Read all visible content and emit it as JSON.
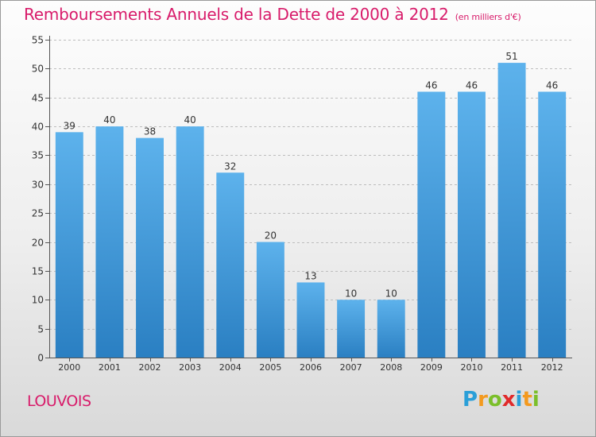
{
  "title": "Remboursements Annuels de la Dette de 2000 à 2012",
  "subtitle": "(en milliers d'€)",
  "town": "LOUVOIS",
  "logo": {
    "text": "Proxiti",
    "letters": [
      {
        "ch": "P",
        "color": "#2a9fd8"
      },
      {
        "ch": "r",
        "color": "#f39a1f"
      },
      {
        "ch": "o",
        "color": "#7bbf2a"
      },
      {
        "ch": "x",
        "color": "#e02a2a"
      },
      {
        "ch": "i",
        "color": "#2a9fd8"
      },
      {
        "ch": "t",
        "color": "#f39a1f"
      },
      {
        "ch": "i",
        "color": "#7bbf2a"
      }
    ]
  },
  "colors": {
    "title": "#d81b6a",
    "bar_top": "#5db2ec",
    "bar_bottom": "#2a7fc2",
    "grid": "#bdbdbd",
    "axis": "#555555",
    "text": "#333333"
  },
  "chart_data": {
    "type": "bar",
    "title": "Remboursements Annuels de la Dette de 2000 à 2012",
    "subtitle": "(en milliers d'€)",
    "xlabel": "",
    "ylabel": "",
    "categories": [
      "2000",
      "2001",
      "2002",
      "2003",
      "2004",
      "2005",
      "2006",
      "2007",
      "2008",
      "2009",
      "2010",
      "2011",
      "2012"
    ],
    "values": [
      39,
      40,
      38,
      40,
      32,
      20,
      13,
      10,
      10,
      46,
      46,
      51,
      46
    ],
    "ylim": [
      0,
      55
    ],
    "yticks": [
      0,
      5,
      10,
      15,
      20,
      25,
      30,
      35,
      40,
      45,
      50,
      55
    ],
    "grid": true,
    "data_labels": true
  }
}
